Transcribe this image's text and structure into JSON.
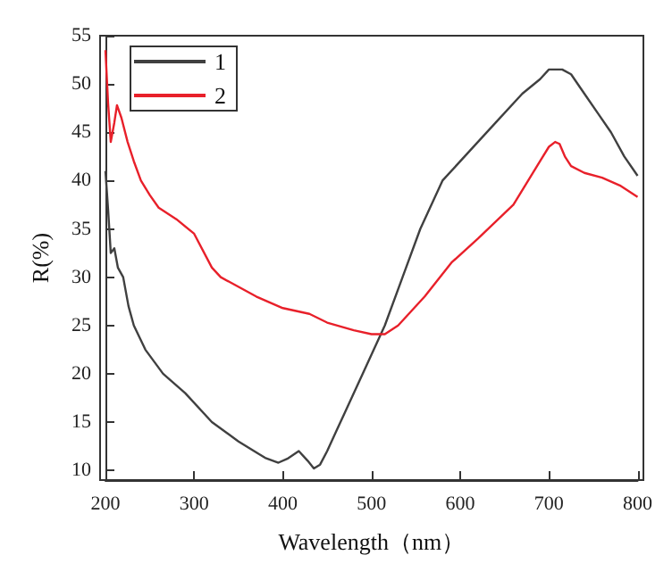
{
  "chart_data": {
    "type": "line",
    "xlabel": "Wavelength（nm）",
    "ylabel": "R(%)",
    "xlim": [
      200,
      800
    ],
    "ylim": [
      9,
      55
    ],
    "xticks": [
      200,
      300,
      400,
      500,
      600,
      700,
      800
    ],
    "yticks": [
      10,
      15,
      20,
      25,
      30,
      35,
      40,
      45,
      50,
      55
    ],
    "grid": false,
    "legend": "top left",
    "marker": "none",
    "line_style": "solid",
    "series": [
      {
        "name": "1",
        "color": "#404040",
        "x": [
          200,
          203,
          206,
          210,
          214,
          220,
          226,
          232,
          245,
          265,
          290,
          320,
          350,
          380,
          395,
          405,
          418,
          428,
          435,
          442,
          450,
          460,
          470,
          490,
          515,
          535,
          555,
          580,
          610,
          640,
          670,
          690,
          700,
          715,
          725,
          740,
          755,
          770,
          785,
          800
        ],
        "values": [
          41,
          37,
          32.5,
          33,
          31,
          30,
          27,
          25,
          22.5,
          20,
          18,
          15,
          13,
          11.3,
          10.8,
          11.2,
          12,
          11,
          10.2,
          10.6,
          12,
          14,
          16,
          20,
          25,
          30,
          35,
          40,
          43,
          46,
          49,
          50.5,
          51.5,
          51.5,
          51,
          49,
          47,
          45,
          42.5,
          40.5
        ]
      },
      {
        "name": "2",
        "color": "#e8202a",
        "x": [
          200,
          203,
          206,
          210,
          213,
          218,
          225,
          232,
          240,
          250,
          260,
          280,
          300,
          320,
          330,
          340,
          370,
          400,
          430,
          450,
          480,
          500,
          515,
          530,
          545,
          560,
          590,
          620,
          660,
          690,
          700,
          707,
          712,
          718,
          725,
          740,
          760,
          780,
          800
        ],
        "values": [
          53.5,
          48,
          44,
          46,
          47.8,
          46.5,
          44,
          42,
          40,
          38.5,
          37.2,
          36,
          34.5,
          31,
          30,
          29.5,
          28,
          26.8,
          26.2,
          25.3,
          24.5,
          24.1,
          24.1,
          25,
          26.5,
          28,
          31.5,
          34,
          37.5,
          42,
          43.5,
          44,
          43.8,
          42.5,
          41.5,
          40.8,
          40.3,
          39.5,
          38.3
        ]
      }
    ]
  }
}
